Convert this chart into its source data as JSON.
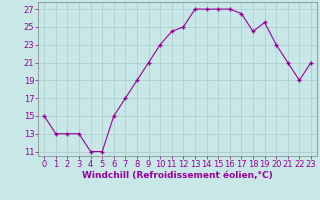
{
  "x": [
    0,
    1,
    2,
    3,
    4,
    5,
    6,
    7,
    8,
    9,
    10,
    11,
    12,
    13,
    14,
    15,
    16,
    17,
    18,
    19,
    20,
    21,
    22,
    23
  ],
  "y": [
    15,
    13,
    13,
    13,
    11,
    11,
    15,
    17,
    19,
    21,
    23,
    24.5,
    25,
    27,
    27,
    27,
    27,
    26.5,
    24.5,
    25.5,
    23,
    21,
    19,
    21
  ],
  "line_color": "#990099",
  "marker": "+",
  "marker_size": 3,
  "marker_color": "#990099",
  "background_color": "#c8e8e8",
  "grid_color": "#b0d0d0",
  "xlabel": "Windchill (Refroidissement éolien,°C)",
  "xlabel_color": "#990099",
  "xlabel_fontsize": 6.5,
  "tick_color": "#990099",
  "tick_fontsize": 6,
  "xlim": [
    -0.5,
    23.5
  ],
  "ylim": [
    10.5,
    27.8
  ],
  "yticks": [
    11,
    13,
    15,
    17,
    19,
    21,
    23,
    25,
    27
  ],
  "xticks": [
    0,
    1,
    2,
    3,
    4,
    5,
    6,
    7,
    8,
    9,
    10,
    11,
    12,
    13,
    14,
    15,
    16,
    17,
    18,
    19,
    20,
    21,
    22,
    23
  ]
}
